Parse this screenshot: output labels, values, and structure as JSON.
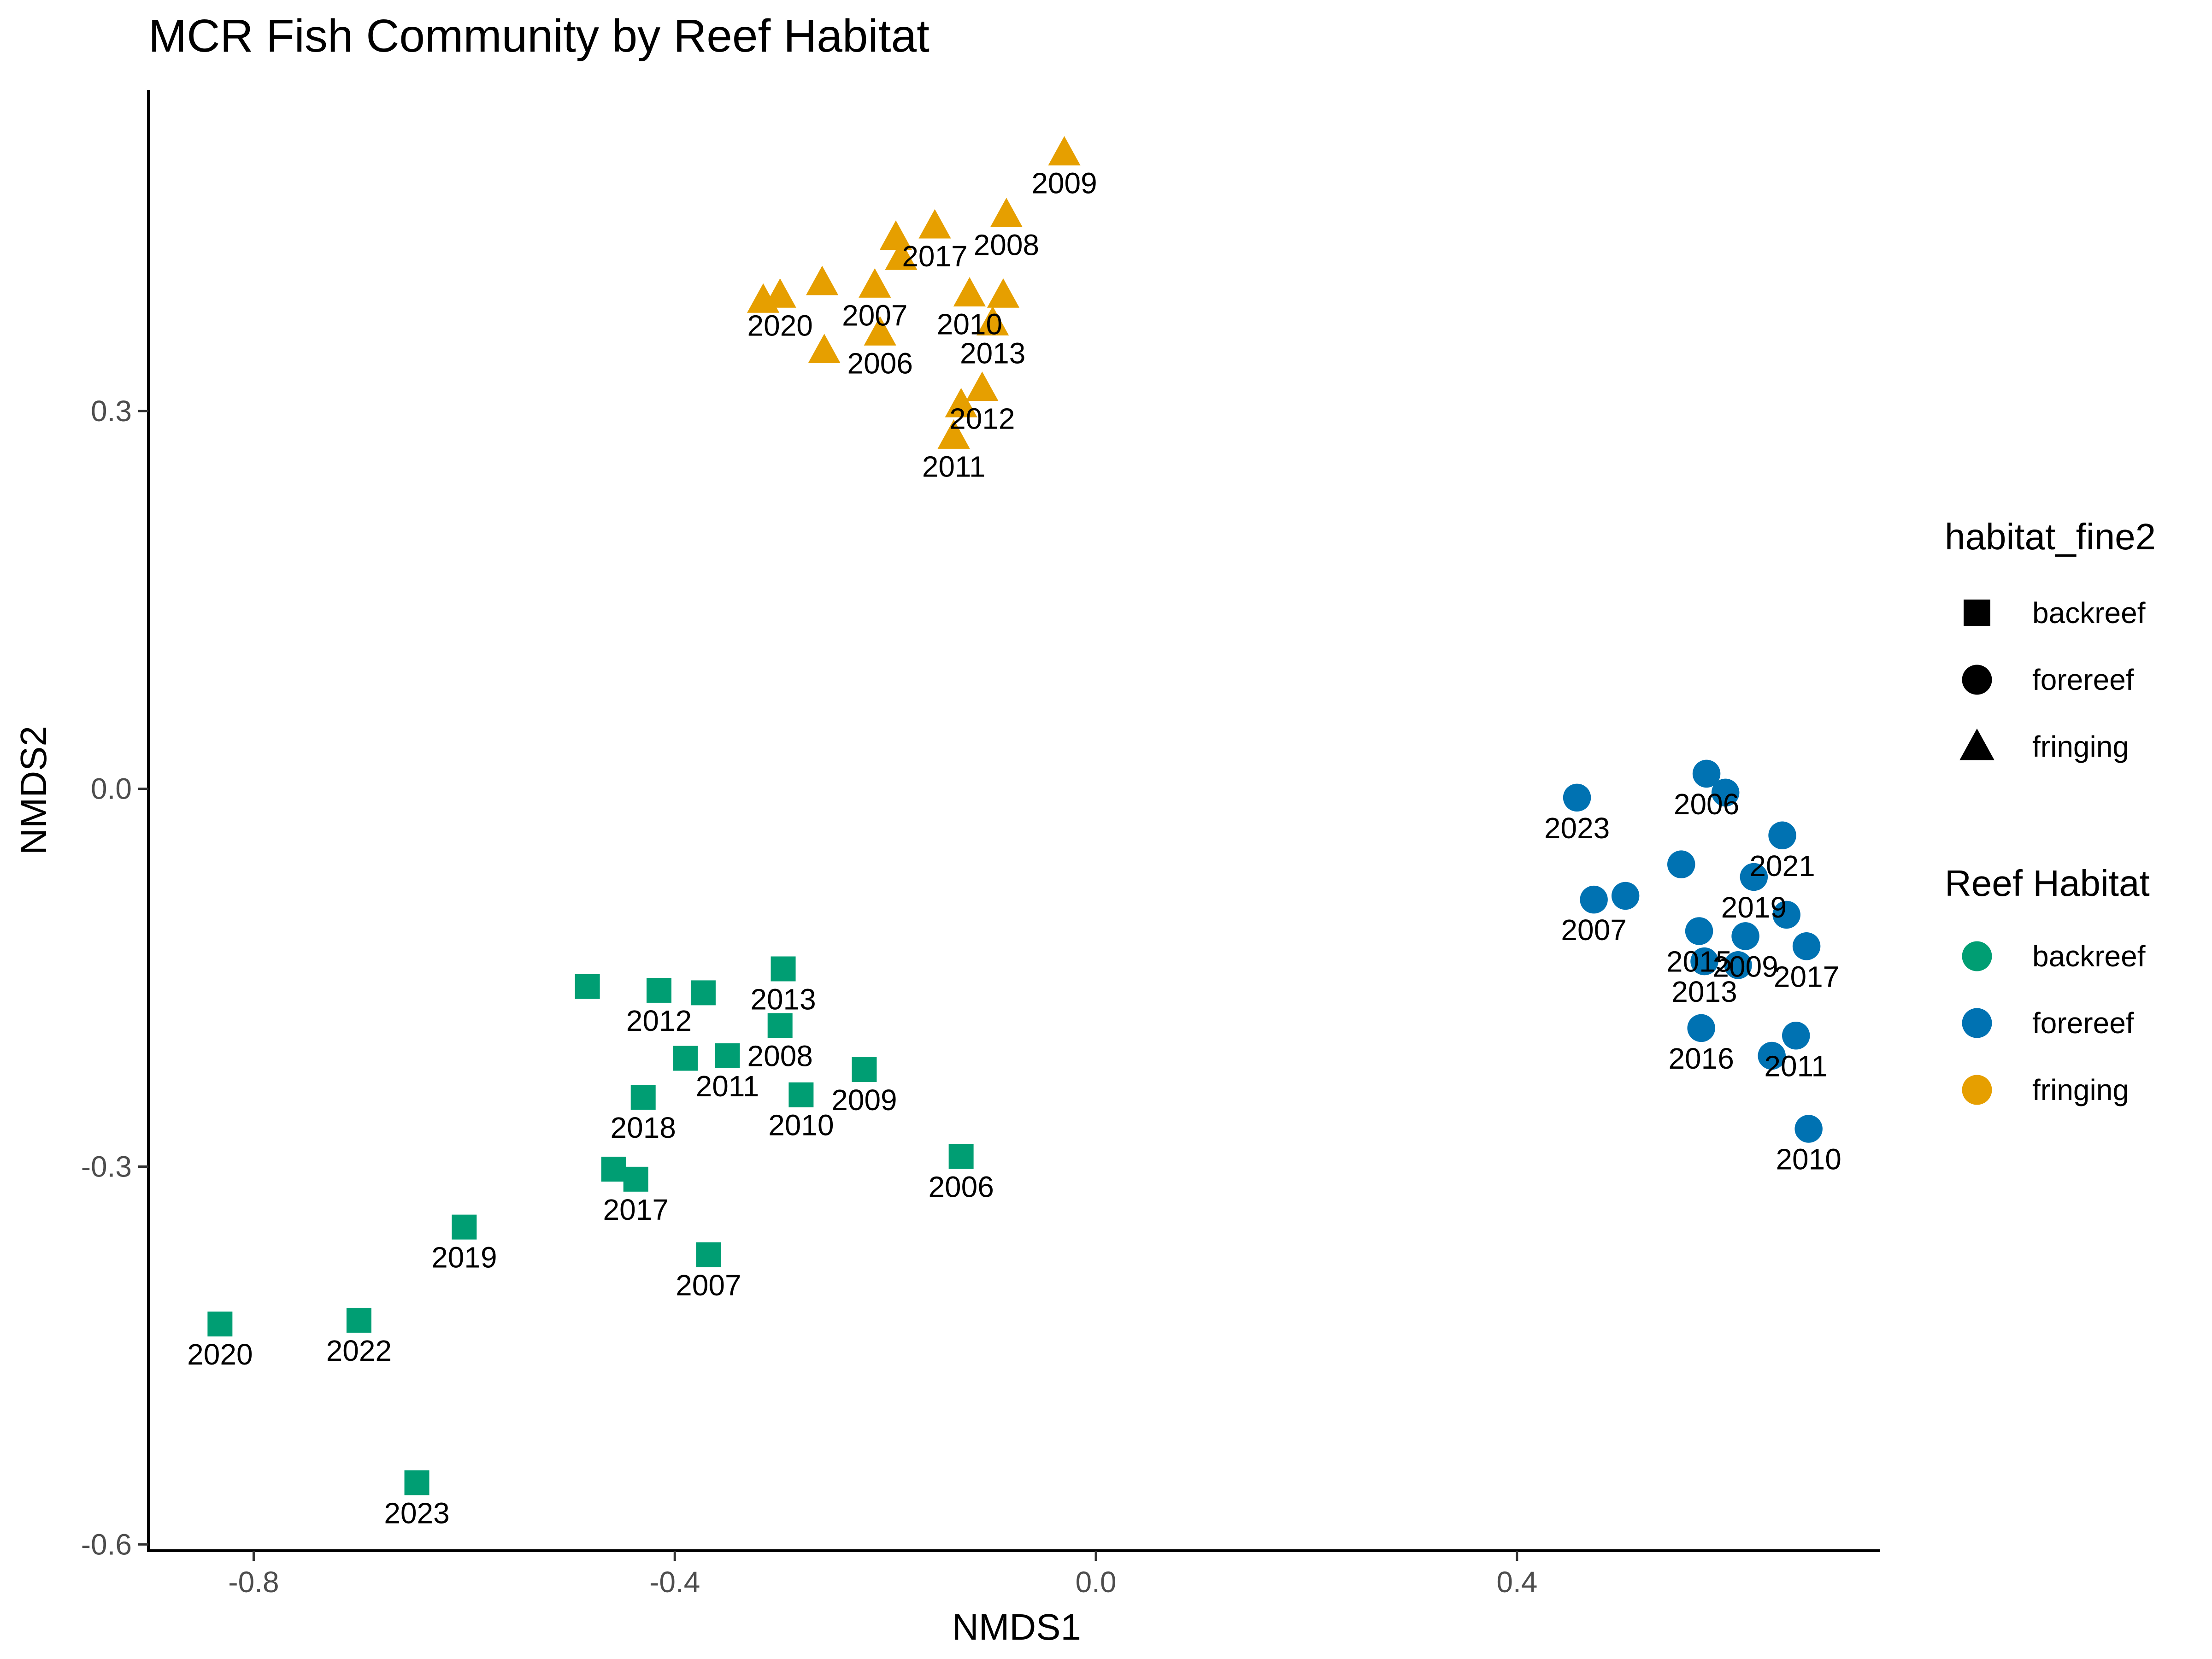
{
  "chart_data": {
    "type": "scatter",
    "title": "MCR Fish Community by Reef Habitat",
    "xlabel": "NMDS1",
    "ylabel": "NMDS2",
    "xlim": [
      -0.9,
      0.745
    ],
    "ylim": [
      -0.605,
      0.555
    ],
    "xticks": [
      -0.8,
      -0.4,
      0.0,
      0.4
    ],
    "xtick_labels": [
      "-0.8",
      "-0.4",
      "0.0",
      "0.4"
    ],
    "yticks": [
      -0.6,
      -0.3,
      0.0,
      0.3
    ],
    "ytick_labels": [
      "-0.6",
      "-0.3",
      "0.0",
      "0.3"
    ],
    "grid": false,
    "legend_position": "right",
    "legends": [
      {
        "title": "habitat_fine2",
        "kind": "shape",
        "entries": [
          {
            "label": "backreef",
            "shape": "square"
          },
          {
            "label": "forereef",
            "shape": "circle"
          },
          {
            "label": "fringing",
            "shape": "triangle"
          }
        ]
      },
      {
        "title": "Reef Habitat",
        "kind": "color",
        "entries": [
          {
            "label": "backreef",
            "color": "#009E73"
          },
          {
            "label": "forereef",
            "color": "#0072B2"
          },
          {
            "label": "fringing",
            "color": "#E69F00"
          }
        ]
      }
    ],
    "series": [
      {
        "name": "backreef",
        "color": "#009E73",
        "shape": "square",
        "points": [
          {
            "x": -0.832,
            "y": -0.425,
            "label": "2020"
          },
          {
            "x": -0.7,
            "y": -0.422,
            "label": "2022"
          },
          {
            "x": -0.645,
            "y": -0.551,
            "label": "2023"
          },
          {
            "x": -0.6,
            "y": -0.348,
            "label": "2019"
          },
          {
            "x": -0.483,
            "y": -0.157,
            "label": ""
          },
          {
            "x": -0.458,
            "y": -0.302,
            "label": ""
          },
          {
            "x": -0.437,
            "y": -0.31,
            "label": "2017"
          },
          {
            "x": -0.43,
            "y": -0.245,
            "label": "2018"
          },
          {
            "x": -0.415,
            "y": -0.16,
            "label": "2012"
          },
          {
            "x": -0.39,
            "y": -0.214,
            "label": ""
          },
          {
            "x": -0.373,
            "y": -0.162,
            "label": ""
          },
          {
            "x": -0.368,
            "y": -0.37,
            "label": "2007"
          },
          {
            "x": -0.35,
            "y": -0.212,
            "label": "2011"
          },
          {
            "x": -0.3,
            "y": -0.188,
            "label": "2008"
          },
          {
            "x": -0.297,
            "y": -0.143,
            "label": "2013"
          },
          {
            "x": -0.28,
            "y": -0.243,
            "label": "2010"
          },
          {
            "x": -0.22,
            "y": -0.223,
            "label": "2009"
          },
          {
            "x": -0.128,
            "y": -0.292,
            "label": "2006"
          }
        ]
      },
      {
        "name": "forereef",
        "color": "#0072B2",
        "shape": "circle",
        "points": [
          {
            "x": 0.457,
            "y": -0.007,
            "label": "2023"
          },
          {
            "x": 0.473,
            "y": -0.088,
            "label": "2007"
          },
          {
            "x": 0.503,
            "y": -0.085,
            "label": ""
          },
          {
            "x": 0.556,
            "y": -0.06,
            "label": ""
          },
          {
            "x": 0.573,
            "y": -0.113,
            "label": "2015"
          },
          {
            "x": 0.575,
            "y": -0.19,
            "label": "2016"
          },
          {
            "x": 0.578,
            "y": -0.137,
            "label": "2013"
          },
          {
            "x": 0.58,
            "y": 0.012,
            "label": "2006"
          },
          {
            "x": 0.598,
            "y": -0.003,
            "label": ""
          },
          {
            "x": 0.61,
            "y": -0.14,
            "label": ""
          },
          {
            "x": 0.617,
            "y": -0.117,
            "label": "2009"
          },
          {
            "x": 0.625,
            "y": -0.07,
            "label": "2019"
          },
          {
            "x": 0.642,
            "y": -0.212,
            "label": ""
          },
          {
            "x": 0.652,
            "y": -0.037,
            "label": "2021"
          },
          {
            "x": 0.656,
            "y": -0.1,
            "label": ""
          },
          {
            "x": 0.665,
            "y": -0.196,
            "label": "2011"
          },
          {
            "x": 0.675,
            "y": -0.125,
            "label": "2017"
          },
          {
            "x": 0.677,
            "y": -0.27,
            "label": "2010"
          }
        ]
      },
      {
        "name": "fringing",
        "color": "#E69F00",
        "shape": "triangle",
        "points": [
          {
            "x": -0.316,
            "y": 0.388,
            "label": ""
          },
          {
            "x": -0.3,
            "y": 0.392,
            "label": "2020"
          },
          {
            "x": -0.26,
            "y": 0.402,
            "label": ""
          },
          {
            "x": -0.258,
            "y": 0.348,
            "label": ""
          },
          {
            "x": -0.21,
            "y": 0.4,
            "label": "2007"
          },
          {
            "x": -0.205,
            "y": 0.362,
            "label": "2006"
          },
          {
            "x": -0.19,
            "y": 0.438,
            "label": ""
          },
          {
            "x": -0.185,
            "y": 0.422,
            "label": ""
          },
          {
            "x": -0.153,
            "y": 0.447,
            "label": "2017"
          },
          {
            "x": -0.135,
            "y": 0.28,
            "label": "2011"
          },
          {
            "x": -0.128,
            "y": 0.305,
            "label": ""
          },
          {
            "x": -0.12,
            "y": 0.393,
            "label": "2010"
          },
          {
            "x": -0.108,
            "y": 0.318,
            "label": "2012"
          },
          {
            "x": -0.098,
            "y": 0.37,
            "label": "2013"
          },
          {
            "x": -0.088,
            "y": 0.392,
            "label": ""
          },
          {
            "x": -0.085,
            "y": 0.456,
            "label": "2008"
          },
          {
            "x": -0.03,
            "y": 0.505,
            "label": "2009"
          }
        ]
      }
    ]
  }
}
